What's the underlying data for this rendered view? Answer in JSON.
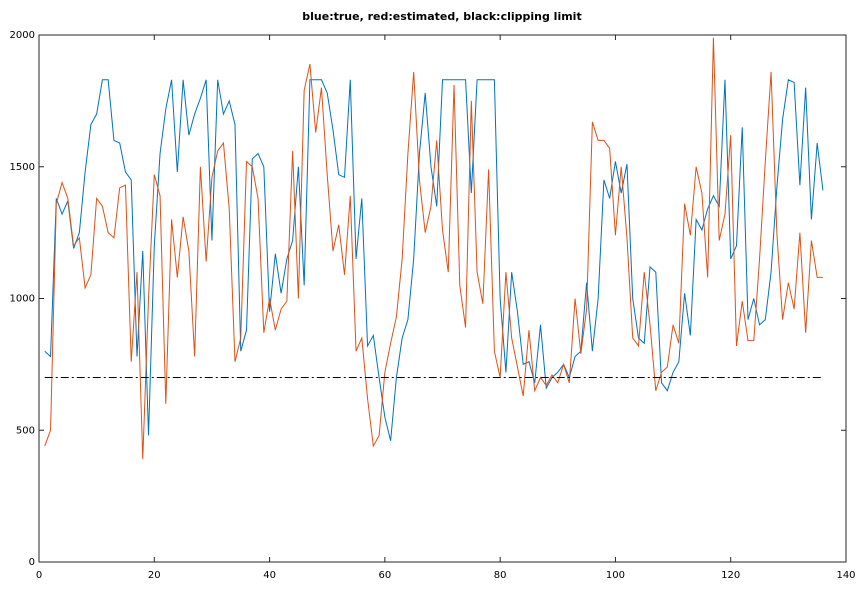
{
  "chart_data": {
    "type": "line",
    "title": "blue:true, red:estimated, black:clipping limit",
    "x": [
      1,
      2,
      3,
      4,
      5,
      6,
      7,
      8,
      9,
      10,
      11,
      12,
      13,
      14,
      15,
      16,
      17,
      18,
      19,
      20,
      21,
      22,
      23,
      24,
      25,
      26,
      27,
      28,
      29,
      30,
      31,
      32,
      33,
      34,
      35,
      36,
      37,
      38,
      39,
      40,
      41,
      42,
      43,
      44,
      45,
      46,
      47,
      48,
      49,
      50,
      51,
      52,
      53,
      54,
      55,
      56,
      57,
      58,
      59,
      60,
      61,
      62,
      63,
      64,
      65,
      66,
      67,
      68,
      69,
      70,
      71,
      72,
      73,
      74,
      75,
      76,
      77,
      78,
      79,
      80,
      81,
      82,
      83,
      84,
      85,
      86,
      87,
      88,
      89,
      90,
      91,
      92,
      93,
      94,
      95,
      96,
      97,
      98,
      99,
      100,
      101,
      102,
      103,
      104,
      105,
      106,
      107,
      108,
      109,
      110,
      111,
      112,
      113,
      114,
      115,
      116,
      117,
      118,
      119,
      120,
      121,
      122,
      123,
      124,
      125,
      126,
      127,
      128,
      129,
      130,
      131,
      132,
      133,
      134,
      135,
      136
    ],
    "series": [
      {
        "color": "#0072bd",
        "values": [
          800,
          780,
          1380,
          1320,
          1370,
          1190,
          1250,
          1480,
          1660,
          1700,
          1830,
          1830,
          1600,
          1590,
          1480,
          1450,
          780,
          1180,
          480,
          1200,
          1550,
          1720,
          1830,
          1480,
          1830,
          1620,
          1700,
          1760,
          1830,
          1220,
          1830,
          1700,
          1750,
          1660,
          800,
          880,
          1530,
          1550,
          1500,
          950,
          1170,
          1020,
          1150,
          1220,
          1500,
          1050,
          1830,
          1830,
          1830,
          1780,
          1640,
          1470,
          1460,
          1830,
          1150,
          1380,
          820,
          860,
          700,
          550,
          460,
          700,
          850,
          920,
          1150,
          1550,
          1780,
          1500,
          1350,
          1830,
          1830,
          1830,
          1830,
          1830,
          1400,
          1830,
          1830,
          1830,
          1830,
          1000,
          720,
          1100,
          950,
          750,
          760,
          680,
          900,
          660,
          700,
          720,
          750,
          700,
          780,
          800,
          1060,
          800,
          1000,
          1450,
          1380,
          1520,
          1400,
          1510,
          1000,
          850,
          830,
          1120,
          1100,
          680,
          650,
          720,
          760,
          1020,
          860,
          1300,
          1260,
          1340,
          1390,
          1350,
          1830,
          1150,
          1200,
          1650,
          920,
          1000,
          900,
          920,
          1100,
          1420,
          1680,
          1830,
          1820,
          1430,
          1800,
          1300,
          1590,
          1410
        ]
      },
      {
        "color": "#d95319",
        "values": [
          440,
          500,
          1360,
          1440,
          1380,
          1200,
          1230,
          1040,
          1090,
          1380,
          1350,
          1250,
          1230,
          1420,
          1430,
          760,
          1100,
          390,
          1000,
          1470,
          1390,
          600,
          1300,
          1080,
          1310,
          1180,
          780,
          1500,
          1140,
          1460,
          1560,
          1590,
          1340,
          760,
          850,
          1520,
          1500,
          1380,
          870,
          1000,
          880,
          960,
          990,
          1560,
          1000,
          1790,
          1890,
          1630,
          1800,
          1470,
          1180,
          1280,
          1090,
          1390,
          800,
          850,
          620,
          440,
          480,
          720,
          830,
          930,
          1150,
          1550,
          1860,
          1450,
          1250,
          1350,
          1600,
          1260,
          1100,
          1810,
          1050,
          890,
          1750,
          1100,
          980,
          1490,
          800,
          700,
          1100,
          850,
          740,
          630,
          880,
          650,
          700,
          670,
          710,
          680,
          750,
          680,
          1000,
          790,
          960,
          1670,
          1600,
          1600,
          1570,
          1240,
          1500,
          1230,
          850,
          820,
          1100,
          900,
          650,
          720,
          740,
          900,
          830,
          1360,
          1240,
          1500,
          1400,
          1080,
          1990,
          1220,
          1320,
          1620,
          820,
          990,
          840,
          840,
          1150,
          1520,
          1860,
          1250,
          920,
          1060,
          960,
          1250,
          870,
          1220,
          1080,
          1080
        ]
      }
    ],
    "clip_line": {
      "y": 700,
      "x": [
        1,
        136
      ],
      "color": "#000000",
      "dash": "dash-dot"
    },
    "xlim": [
      0,
      140
    ],
    "xticks": [
      0,
      20,
      40,
      60,
      80,
      100,
      120,
      140
    ],
    "ylim": [
      0,
      2000
    ],
    "yticks": [
      0,
      500,
      1000,
      1500,
      2000
    ]
  }
}
